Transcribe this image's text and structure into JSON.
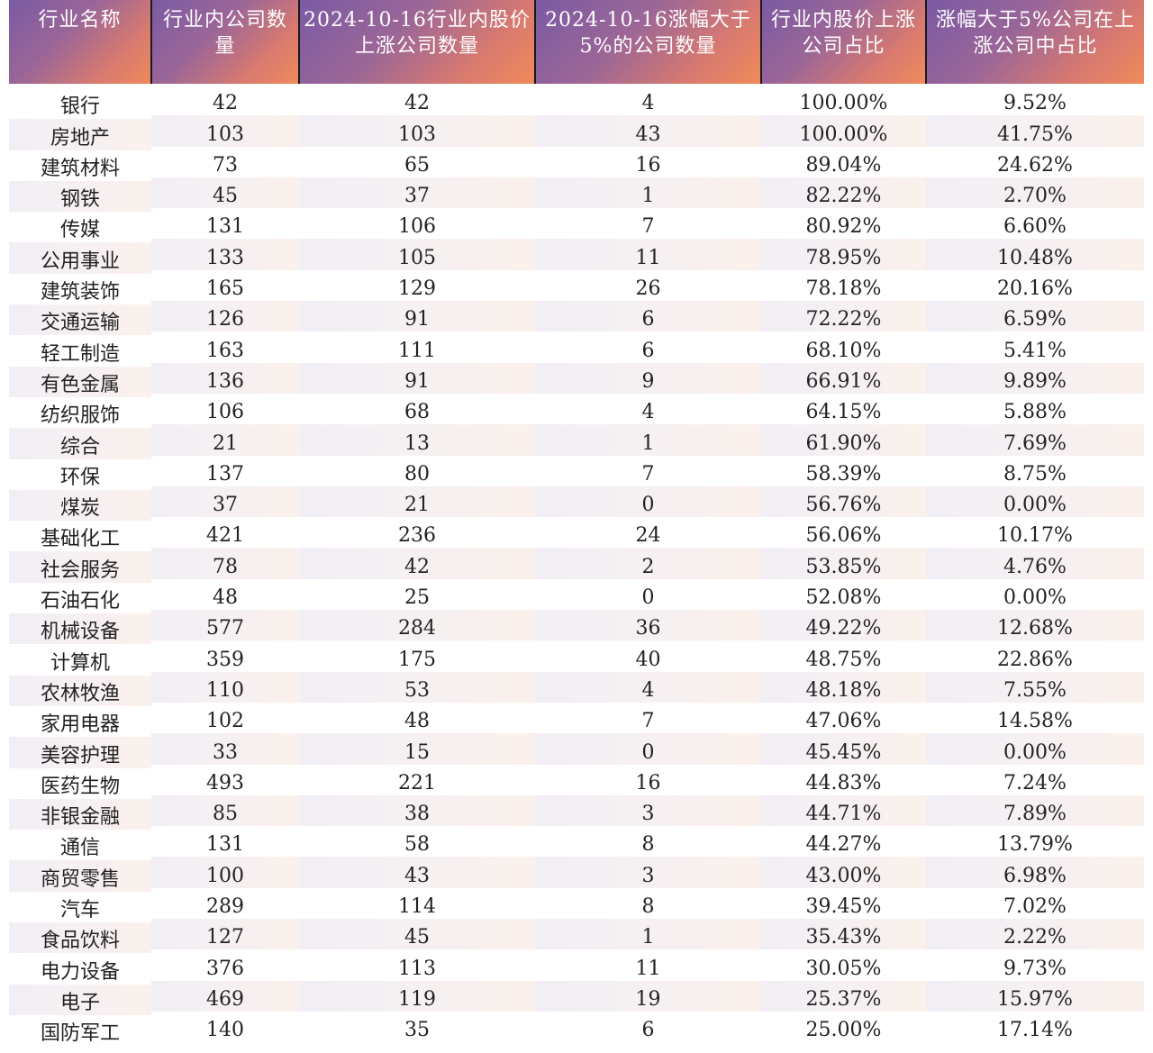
{
  "table": {
    "headers": [
      "行业名称",
      "行业内公司数量",
      "2024-10-16行业内股价上涨公司数量",
      "2024-10-16涨幅大于5%的公司数量",
      "行业内股价上涨公司占比",
      "涨幅大于5%公司在上涨公司中占比"
    ],
    "rows": [
      [
        "银行",
        "42",
        "42",
        "4",
        "100.00%",
        "9.52%"
      ],
      [
        "房地产",
        "103",
        "103",
        "43",
        "100.00%",
        "41.75%"
      ],
      [
        "建筑材料",
        "73",
        "65",
        "16",
        "89.04%",
        "24.62%"
      ],
      [
        "钢铁",
        "45",
        "37",
        "1",
        "82.22%",
        "2.70%"
      ],
      [
        "传媒",
        "131",
        "106",
        "7",
        "80.92%",
        "6.60%"
      ],
      [
        "公用事业",
        "133",
        "105",
        "11",
        "78.95%",
        "10.48%"
      ],
      [
        "建筑装饰",
        "165",
        "129",
        "26",
        "78.18%",
        "20.16%"
      ],
      [
        "交通运输",
        "126",
        "91",
        "6",
        "72.22%",
        "6.59%"
      ],
      [
        "轻工制造",
        "163",
        "111",
        "6",
        "68.10%",
        "5.41%"
      ],
      [
        "有色金属",
        "136",
        "91",
        "9",
        "66.91%",
        "9.89%"
      ],
      [
        "纺织服饰",
        "106",
        "68",
        "4",
        "64.15%",
        "5.88%"
      ],
      [
        "综合",
        "21",
        "13",
        "1",
        "61.90%",
        "7.69%"
      ],
      [
        "环保",
        "137",
        "80",
        "7",
        "58.39%",
        "8.75%"
      ],
      [
        "煤炭",
        "37",
        "21",
        "0",
        "56.76%",
        "0.00%"
      ],
      [
        "基础化工",
        "421",
        "236",
        "24",
        "56.06%",
        "10.17%"
      ],
      [
        "社会服务",
        "78",
        "42",
        "2",
        "53.85%",
        "4.76%"
      ],
      [
        "石油石化",
        "48",
        "25",
        "0",
        "52.08%",
        "0.00%"
      ],
      [
        "机械设备",
        "577",
        "284",
        "36",
        "49.22%",
        "12.68%"
      ],
      [
        "计算机",
        "359",
        "175",
        "40",
        "48.75%",
        "22.86%"
      ],
      [
        "农林牧渔",
        "110",
        "53",
        "4",
        "48.18%",
        "7.55%"
      ],
      [
        "家用电器",
        "102",
        "48",
        "7",
        "47.06%",
        "14.58%"
      ],
      [
        "美容护理",
        "33",
        "15",
        "0",
        "45.45%",
        "0.00%"
      ],
      [
        "医药生物",
        "493",
        "221",
        "16",
        "44.83%",
        "7.24%"
      ],
      [
        "非银金融",
        "85",
        "38",
        "3",
        "44.71%",
        "7.89%"
      ],
      [
        "通信",
        "131",
        "58",
        "8",
        "44.27%",
        "13.79%"
      ],
      [
        "商贸零售",
        "100",
        "43",
        "3",
        "43.00%",
        "6.98%"
      ],
      [
        "汽车",
        "289",
        "114",
        "8",
        "39.45%",
        "7.02%"
      ],
      [
        "食品饮料",
        "127",
        "45",
        "1",
        "35.43%",
        "2.22%"
      ],
      [
        "电力设备",
        "376",
        "113",
        "11",
        "30.05%",
        "9.73%"
      ],
      [
        "电子",
        "469",
        "119",
        "19",
        "25.37%",
        "15.97%"
      ],
      [
        "国防军工",
        "140",
        "35",
        "6",
        "25.00%",
        "17.14%"
      ]
    ]
  }
}
